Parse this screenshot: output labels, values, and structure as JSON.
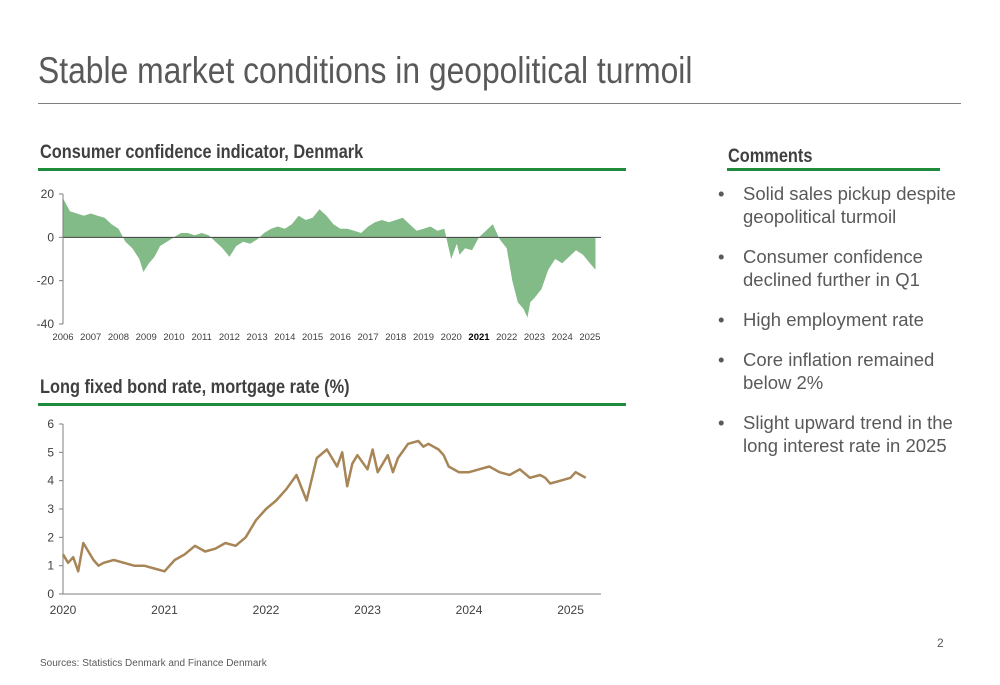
{
  "slide": {
    "title": "Stable market conditions in geopolitical turmoil",
    "page_number": "2",
    "sources": "Sources: Statistics Denmark and Finance Denmark"
  },
  "comments": {
    "heading": "Comments",
    "bullet_symbol": "•",
    "items": [
      "Solid sales pickup despite geopolitical turmoil",
      "Consumer confidence declined further in Q1",
      "High employment rate",
      "Core inflation remained below 2%",
      "Slight upward trend in the long interest rate in 2025"
    ]
  },
  "colors": {
    "accent_green": "#1e8c3a",
    "area_fill": "#82bb87",
    "line_brown": "#a88556",
    "text_grey": "#595959"
  },
  "chart_data": [
    {
      "type": "area",
      "title": "Consumer confidence indicator, Denmark",
      "xlabel": "",
      "ylabel": "",
      "xlim": [
        2006,
        2025.4
      ],
      "ylim": [
        -40,
        20
      ],
      "yticks": [
        20,
        0,
        -20,
        -40
      ],
      "ytick_labels": [
        "20",
        "0",
        "-20",
        "-40"
      ],
      "xticks": [
        2006,
        2007,
        2008,
        2009,
        2010,
        2011,
        2012,
        2013,
        2014,
        2015,
        2016,
        2017,
        2018,
        2019,
        2020,
        2021,
        2022,
        2023,
        2024,
        2025
      ],
      "xtick_labels": [
        "2006",
        "2007",
        "2008",
        "2009",
        "2010",
        "2011",
        "2012",
        "2013",
        "2014",
        "2015",
        "2016",
        "2017",
        "2018",
        "2019",
        "2020",
        "2021",
        "2022",
        "2023",
        "2024",
        "2025"
      ],
      "highlight_tick": "2021",
      "x": [
        2006.0,
        2006.25,
        2006.5,
        2006.75,
        2007.0,
        2007.25,
        2007.5,
        2007.75,
        2008.0,
        2008.25,
        2008.5,
        2008.75,
        2008.9,
        2009.1,
        2009.3,
        2009.5,
        2009.75,
        2010.0,
        2010.25,
        2010.5,
        2010.75,
        2011.0,
        2011.25,
        2011.5,
        2011.75,
        2012.0,
        2012.25,
        2012.5,
        2012.75,
        2013.0,
        2013.25,
        2013.5,
        2013.75,
        2014.0,
        2014.25,
        2014.5,
        2014.75,
        2015.0,
        2015.25,
        2015.5,
        2015.75,
        2016.0,
        2016.25,
        2016.5,
        2016.75,
        2017.0,
        2017.25,
        2017.5,
        2017.75,
        2018.0,
        2018.25,
        2018.5,
        2018.75,
        2019.0,
        2019.25,
        2019.5,
        2019.75,
        2020.0,
        2020.2,
        2020.3,
        2020.5,
        2020.75,
        2021.0,
        2021.25,
        2021.5,
        2021.75,
        2022.0,
        2022.2,
        2022.4,
        2022.6,
        2022.75,
        2022.85,
        2023.0,
        2023.25,
        2023.5,
        2023.75,
        2024.0,
        2024.25,
        2024.5,
        2024.75,
        2025.0,
        2025.2
      ],
      "values": [
        18,
        12,
        11,
        10,
        11,
        10,
        9,
        6,
        4,
        -2,
        -5,
        -10,
        -16,
        -12,
        -9,
        -4,
        -2,
        0,
        2,
        2,
        1,
        2,
        1,
        -2,
        -5,
        -9,
        -4,
        -2,
        -3,
        -1,
        2,
        4,
        5,
        4,
        6,
        10,
        8,
        9,
        13,
        10,
        6,
        4,
        4,
        3,
        2,
        5,
        7,
        8,
        7,
        8,
        9,
        6,
        3,
        4,
        5,
        3,
        4,
        -10,
        -3,
        -8,
        -5,
        -6,
        0,
        3,
        6,
        -1,
        -5,
        -20,
        -30,
        -33,
        -37,
        -30,
        -28,
        -24,
        -15,
        -10,
        -12,
        -9,
        -6,
        -8,
        -12,
        -15
      ]
    },
    {
      "type": "line",
      "title": "Long fixed bond rate, mortgage rate (%)",
      "xlabel": "",
      "ylabel": "",
      "xlim": [
        2020.0,
        2025.3
      ],
      "ylim": [
        0,
        6
      ],
      "yticks": [
        0,
        1,
        2,
        3,
        4,
        5,
        6
      ],
      "ytick_labels": [
        "0",
        "1",
        "2",
        "3",
        "4",
        "5",
        "6"
      ],
      "xticks": [
        2020,
        2021,
        2022,
        2023,
        2024,
        2025
      ],
      "xtick_labels": [
        "2020",
        "2021",
        "2022",
        "2023",
        "2024",
        "2025"
      ],
      "x": [
        2020.0,
        2020.05,
        2020.1,
        2020.15,
        2020.2,
        2020.25,
        2020.3,
        2020.35,
        2020.4,
        2020.5,
        2020.6,
        2020.7,
        2020.8,
        2020.9,
        2021.0,
        2021.1,
        2021.2,
        2021.3,
        2021.4,
        2021.5,
        2021.6,
        2021.7,
        2021.8,
        2021.9,
        2022.0,
        2022.1,
        2022.2,
        2022.3,
        2022.4,
        2022.5,
        2022.6,
        2022.7,
        2022.75,
        2022.8,
        2022.85,
        2022.9,
        2023.0,
        2023.05,
        2023.1,
        2023.2,
        2023.25,
        2023.3,
        2023.4,
        2023.5,
        2023.55,
        2023.6,
        2023.7,
        2023.75,
        2023.8,
        2023.9,
        2024.0,
        2024.1,
        2024.2,
        2024.3,
        2024.4,
        2024.5,
        2024.6,
        2024.7,
        2024.75,
        2024.8,
        2024.9,
        2025.0,
        2025.05,
        2025.1,
        2025.15
      ],
      "values": [
        1.4,
        1.1,
        1.3,
        0.8,
        1.8,
        1.5,
        1.2,
        1.0,
        1.1,
        1.2,
        1.1,
        1.0,
        1.0,
        0.9,
        0.8,
        1.2,
        1.4,
        1.7,
        1.5,
        1.6,
        1.8,
        1.7,
        2.0,
        2.6,
        3.0,
        3.3,
        3.7,
        4.2,
        3.3,
        4.8,
        5.1,
        4.5,
        5.0,
        3.8,
        4.6,
        4.9,
        4.4,
        5.1,
        4.3,
        4.9,
        4.3,
        4.8,
        5.3,
        5.4,
        5.2,
        5.3,
        5.1,
        4.9,
        4.5,
        4.3,
        4.3,
        4.4,
        4.5,
        4.3,
        4.2,
        4.4,
        4.1,
        4.2,
        4.1,
        3.9,
        4.0,
        4.1,
        4.3,
        4.2,
        4.1
      ]
    }
  ]
}
